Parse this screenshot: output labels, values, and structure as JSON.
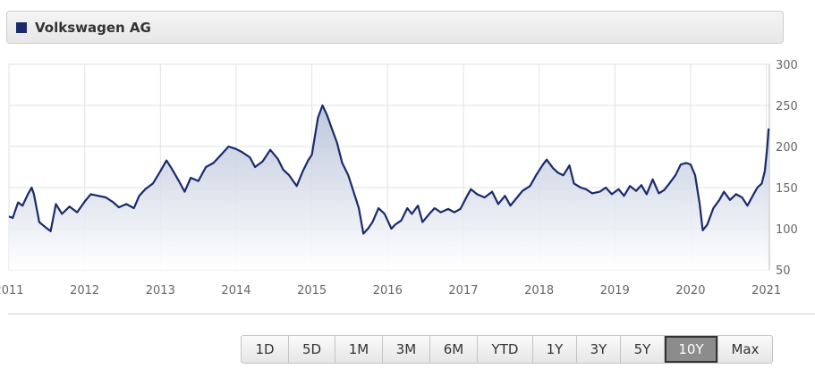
{
  "legend": {
    "label": "Volkswagen AG",
    "color": "#1a2a6c"
  },
  "range_selector": {
    "buttons": [
      "1D",
      "5D",
      "1M",
      "3M",
      "6M",
      "YTD",
      "1Y",
      "3Y",
      "5Y",
      "10Y",
      "Max"
    ],
    "active": "10Y"
  },
  "chart_data": {
    "type": "area",
    "series": [
      {
        "name": "Volkswagen AG",
        "color": "#1a2a6c",
        "points": [
          [
            2011.0,
            115
          ],
          [
            2011.05,
            113
          ],
          [
            2011.12,
            132
          ],
          [
            2011.18,
            128
          ],
          [
            2011.25,
            142
          ],
          [
            2011.3,
            150
          ],
          [
            2011.33,
            142
          ],
          [
            2011.4,
            108
          ],
          [
            2011.48,
            102
          ],
          [
            2011.55,
            97
          ],
          [
            2011.62,
            130
          ],
          [
            2011.7,
            118
          ],
          [
            2011.8,
            127
          ],
          [
            2011.9,
            120
          ],
          [
            2012.0,
            133
          ],
          [
            2012.08,
            142
          ],
          [
            2012.18,
            140
          ],
          [
            2012.28,
            138
          ],
          [
            2012.38,
            132
          ],
          [
            2012.45,
            126
          ],
          [
            2012.55,
            130
          ],
          [
            2012.65,
            125
          ],
          [
            2012.72,
            140
          ],
          [
            2012.8,
            148
          ],
          [
            2012.9,
            155
          ],
          [
            2013.0,
            170
          ],
          [
            2013.08,
            183
          ],
          [
            2013.15,
            173
          ],
          [
            2013.25,
            157
          ],
          [
            2013.32,
            145
          ],
          [
            2013.4,
            162
          ],
          [
            2013.5,
            158
          ],
          [
            2013.6,
            175
          ],
          [
            2013.7,
            180
          ],
          [
            2013.8,
            190
          ],
          [
            2013.9,
            200
          ],
          [
            2014.0,
            197
          ],
          [
            2014.08,
            193
          ],
          [
            2014.18,
            187
          ],
          [
            2014.25,
            175
          ],
          [
            2014.35,
            182
          ],
          [
            2014.45,
            196
          ],
          [
            2014.55,
            185
          ],
          [
            2014.62,
            172
          ],
          [
            2014.7,
            165
          ],
          [
            2014.8,
            152
          ],
          [
            2014.88,
            170
          ],
          [
            2014.95,
            183
          ],
          [
            2015.0,
            190
          ],
          [
            2015.08,
            235
          ],
          [
            2015.14,
            250
          ],
          [
            2015.2,
            238
          ],
          [
            2015.27,
            220
          ],
          [
            2015.33,
            205
          ],
          [
            2015.4,
            180
          ],
          [
            2015.48,
            165
          ],
          [
            2015.55,
            145
          ],
          [
            2015.62,
            125
          ],
          [
            2015.68,
            94
          ],
          [
            2015.74,
            100
          ],
          [
            2015.8,
            108
          ],
          [
            2015.88,
            125
          ],
          [
            2015.96,
            118
          ],
          [
            2016.05,
            100
          ],
          [
            2016.1,
            105
          ],
          [
            2016.18,
            110
          ],
          [
            2016.26,
            125
          ],
          [
            2016.32,
            118
          ],
          [
            2016.4,
            128
          ],
          [
            2016.46,
            108
          ],
          [
            2016.55,
            118
          ],
          [
            2016.62,
            125
          ],
          [
            2016.7,
            120
          ],
          [
            2016.8,
            124
          ],
          [
            2016.88,
            120
          ],
          [
            2016.96,
            124
          ],
          [
            2017.05,
            140
          ],
          [
            2017.1,
            148
          ],
          [
            2017.18,
            142
          ],
          [
            2017.28,
            138
          ],
          [
            2017.38,
            145
          ],
          [
            2017.46,
            130
          ],
          [
            2017.55,
            140
          ],
          [
            2017.62,
            128
          ],
          [
            2017.7,
            137
          ],
          [
            2017.78,
            146
          ],
          [
            2017.88,
            152
          ],
          [
            2017.96,
            165
          ],
          [
            2018.05,
            178
          ],
          [
            2018.1,
            184
          ],
          [
            2018.18,
            174
          ],
          [
            2018.25,
            168
          ],
          [
            2018.32,
            165
          ],
          [
            2018.4,
            177
          ],
          [
            2018.46,
            155
          ],
          [
            2018.55,
            150
          ],
          [
            2018.62,
            148
          ],
          [
            2018.7,
            143
          ],
          [
            2018.8,
            145
          ],
          [
            2018.88,
            150
          ],
          [
            2018.96,
            142
          ],
          [
            2019.05,
            148
          ],
          [
            2019.12,
            140
          ],
          [
            2019.2,
            152
          ],
          [
            2019.28,
            146
          ],
          [
            2019.35,
            153
          ],
          [
            2019.42,
            142
          ],
          [
            2019.5,
            160
          ],
          [
            2019.58,
            143
          ],
          [
            2019.65,
            147
          ],
          [
            2019.72,
            155
          ],
          [
            2019.8,
            165
          ],
          [
            2019.87,
            178
          ],
          [
            2019.94,
            180
          ],
          [
            2020.0,
            178
          ],
          [
            2020.06,
            165
          ],
          [
            2020.12,
            130
          ],
          [
            2020.16,
            98
          ],
          [
            2020.22,
            105
          ],
          [
            2020.3,
            125
          ],
          [
            2020.38,
            135
          ],
          [
            2020.44,
            145
          ],
          [
            2020.52,
            135
          ],
          [
            2020.6,
            142
          ],
          [
            2020.68,
            138
          ],
          [
            2020.75,
            128
          ],
          [
            2020.82,
            140
          ],
          [
            2020.88,
            150
          ],
          [
            2020.94,
            155
          ],
          [
            2020.98,
            170
          ],
          [
            2021.01,
            198
          ],
          [
            2021.03,
            222
          ]
        ]
      }
    ],
    "x_ticks": [
      "2011",
      "2012",
      "2013",
      "2014",
      "2015",
      "2016",
      "2017",
      "2018",
      "2019",
      "2020",
      "2021"
    ],
    "y_ticks": [
      "50",
      "100",
      "150",
      "200",
      "250",
      "300"
    ],
    "xlim": [
      2011,
      2021.04
    ],
    "ylim": [
      50,
      300
    ],
    "grid": true,
    "legend": "top-left"
  }
}
